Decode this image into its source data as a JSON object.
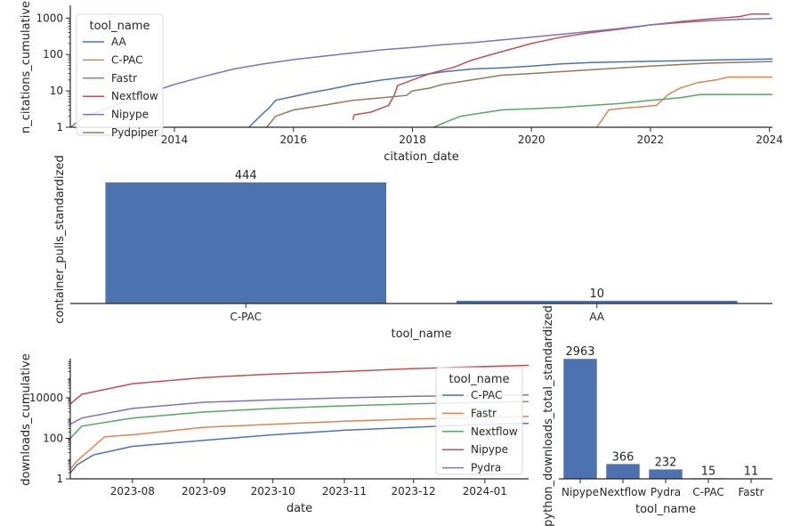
{
  "chart_data": [
    {
      "type": "line",
      "xlabel": "citation_date",
      "ylabel": "n_citations_cumulative",
      "yscale": "log",
      "xlim": [
        2012.25,
        2024.05
      ],
      "ylim": [
        1,
        2000
      ],
      "xticks": [
        2014,
        2016,
        2018,
        2020,
        2022,
        2024
      ],
      "xtick_labels": [
        "2014",
        "2016",
        "2018",
        "2020",
        "2022",
        "2024"
      ],
      "yticks": [
        1,
        10,
        100,
        1000
      ],
      "ytick_labels": [
        "1",
        "10",
        "100",
        "1000"
      ],
      "legend": {
        "title": "tool_name",
        "position": "upper-left"
      },
      "series": [
        {
          "name": "AA",
          "color": "#4c72b0",
          "x": [
            2015.25,
            2015.5,
            2015.6,
            2015.7,
            2016.0,
            2016.3,
            2016.6,
            2017.0,
            2017.5,
            2018.0,
            2018.5,
            2019.0,
            2019.5,
            2020.0,
            2020.5,
            2021.0,
            2022.0,
            2023.0,
            2024.05
          ],
          "y": [
            1,
            2.5,
            3.5,
            5.5,
            7,
            9,
            11,
            15,
            20,
            25,
            33,
            40,
            43,
            48,
            55,
            60,
            65,
            70,
            75
          ]
        },
        {
          "name": "C-PAC",
          "color": "#dd8452",
          "x": [
            2021.1,
            2021.3,
            2021.5,
            2021.8,
            2022.1,
            2022.3,
            2022.5,
            2022.8,
            2023.1,
            2023.3,
            2024.05
          ],
          "y": [
            1,
            3,
            3.3,
            3.6,
            4,
            8,
            12,
            17,
            20,
            24,
            24
          ]
        },
        {
          "name": "Fastr",
          "color": "#55a868",
          "x": [
            2018.35,
            2018.8,
            2019.5,
            2020.5,
            2021.5,
            2022.0,
            2022.5,
            2022.85,
            2024.05
          ],
          "y": [
            1,
            2,
            3,
            3.5,
            4.5,
            5.5,
            6.5,
            8,
            8
          ]
        },
        {
          "name": "Nextflow",
          "color": "#c44e52",
          "x": [
            2017.0,
            2017.02,
            2017.3,
            2017.6,
            2017.7,
            2017.75,
            2018.0,
            2018.3,
            2018.7,
            2019.0,
            2019.5,
            2020.0,
            2020.5,
            2021.0,
            2021.5,
            2022.0,
            2022.5,
            2023.0,
            2023.5,
            2023.7,
            2024.0
          ],
          "y": [
            1.6,
            2.2,
            2.6,
            4,
            8,
            14,
            20,
            30,
            45,
            70,
            120,
            200,
            300,
            400,
            500,
            650,
            800,
            950,
            1100,
            1300,
            1300
          ]
        },
        {
          "name": "Nipype",
          "color": "#8172b3",
          "x": [
            2012.25,
            2012.5,
            2013.0,
            2013.5,
            2014.0,
            2014.5,
            2015.0,
            2015.5,
            2016.0,
            2016.5,
            2017.0,
            2017.5,
            2018.0,
            2018.5,
            2019.0,
            2019.5,
            2020.0,
            2020.5,
            2021.0,
            2021.5,
            2022.0,
            2022.5,
            2023.0,
            2023.5,
            2024.05
          ],
          "y": [
            1,
            2,
            4,
            8,
            15,
            25,
            40,
            55,
            72,
            90,
            110,
            135,
            155,
            185,
            210,
            250,
            300,
            360,
            430,
            520,
            650,
            750,
            850,
            920,
            980
          ]
        },
        {
          "name": "Pydpiper",
          "color": "#937860",
          "x": [
            2015.55,
            2015.7,
            2016.0,
            2016.5,
            2017.0,
            2017.5,
            2017.9,
            2018.0,
            2018.3,
            2018.5,
            2019.0,
            2019.5,
            2020.0,
            2021.0,
            2022.0,
            2023.0,
            2024.05
          ],
          "y": [
            1,
            2,
            3,
            4,
            5.5,
            6.5,
            7.5,
            10,
            12,
            15,
            20,
            27,
            30,
            38,
            48,
            58,
            64
          ]
        }
      ]
    },
    {
      "type": "bar",
      "xlabel": "tool_name",
      "ylabel": "container_pulls_standardized",
      "categories": [
        "C-PAC",
        "AA"
      ],
      "values": [
        444,
        10
      ],
      "value_labels": [
        "444",
        "10"
      ],
      "ylim": [
        0,
        470
      ],
      "color": "#4c72b0"
    },
    {
      "type": "line",
      "xlabel": "date",
      "ylabel": "downloads_cumulative",
      "yscale": "log",
      "xlim": [
        "2023-07-05",
        "2024-01-20"
      ],
      "ylim": [
        1,
        700000
      ],
      "xticks": [
        "2023-08-01",
        "2023-09-01",
        "2023-10-01",
        "2023-11-01",
        "2023-12-01",
        "2024-01-01"
      ],
      "xtick_labels": [
        "2023-08",
        "2023-09",
        "2023-10",
        "2023-11",
        "2023-12",
        "2024-01"
      ],
      "yticks": [
        1,
        100,
        10000
      ],
      "ytick_labels": [
        "1",
        "100",
        "10000"
      ],
      "legend": {
        "title": "tool_name",
        "position": "right"
      },
      "series": [
        {
          "name": "C-PAC",
          "color": "#4c72b0",
          "x": [
            "2023-07-05",
            "2023-07-08",
            "2023-07-15",
            "2023-08-01",
            "2023-09-01",
            "2023-10-01",
            "2023-11-01",
            "2023-12-01",
            "2024-01-01",
            "2024-01-20"
          ],
          "y": [
            2,
            5,
            15,
            40,
            80,
            150,
            250,
            350,
            500,
            550
          ]
        },
        {
          "name": "Fastr",
          "color": "#dd8452",
          "x": [
            "2023-07-05",
            "2023-07-08",
            "2023-07-20",
            "2023-08-01",
            "2023-09-01",
            "2023-10-01",
            "2023-11-01",
            "2023-12-01",
            "2024-01-01",
            "2024-01-20"
          ],
          "y": [
            3,
            8,
            120,
            150,
            350,
            500,
            700,
            900,
            1100,
            1200
          ]
        },
        {
          "name": "Nextflow",
          "color": "#55a868",
          "x": [
            "2023-07-05",
            "2023-07-10",
            "2023-08-01",
            "2023-09-01",
            "2023-10-01",
            "2023-11-01",
            "2023-12-01",
            "2024-01-01",
            "2024-01-20"
          ],
          "y": [
            100,
            400,
            1000,
            2000,
            3000,
            4000,
            5000,
            6000,
            6500
          ]
        },
        {
          "name": "Nipype",
          "color": "#c44e52",
          "x": [
            "2023-07-05",
            "2023-07-10",
            "2023-08-01",
            "2023-09-01",
            "2023-10-01",
            "2023-11-01",
            "2023-12-01",
            "2024-01-01",
            "2024-01-20"
          ],
          "y": [
            5000,
            15000,
            50000,
            100000,
            150000,
            200000,
            280000,
            350000,
            400000
          ]
        },
        {
          "name": "Pydra",
          "color": "#8172b3",
          "x": [
            "2023-07-05",
            "2023-07-10",
            "2023-08-01",
            "2023-09-01",
            "2023-10-01",
            "2023-11-01",
            "2023-12-01",
            "2024-01-01",
            "2024-01-20"
          ],
          "y": [
            500,
            1000,
            3000,
            6000,
            8000,
            10000,
            12000,
            13000,
            14000
          ]
        }
      ]
    },
    {
      "type": "bar",
      "xlabel": "tool_name",
      "ylabel": "python_downloads_total_standardized",
      "categories": [
        "Nipype",
        "Nextflow",
        "Pydra",
        "C-PAC",
        "Fastr"
      ],
      "values": [
        2963,
        366,
        232,
        15,
        11
      ],
      "value_labels": [
        "2963",
        "366",
        "232",
        "15",
        "11"
      ],
      "ylim": [
        0,
        3100
      ],
      "color": "#4c72b0"
    }
  ]
}
